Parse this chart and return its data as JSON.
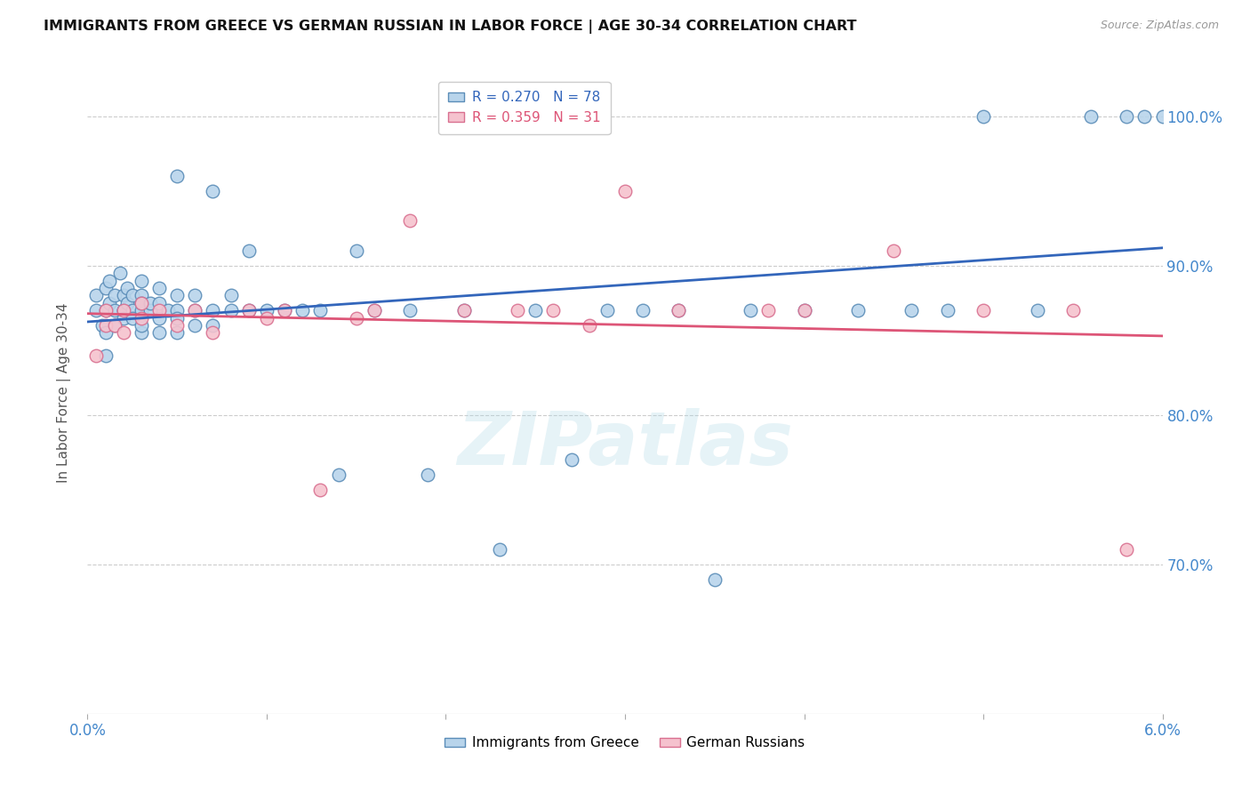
{
  "title": "IMMIGRANTS FROM GREECE VS GERMAN RUSSIAN IN LABOR FORCE | AGE 30-34 CORRELATION CHART",
  "source": "Source: ZipAtlas.com",
  "ylabel": "In Labor Force | Age 30-34",
  "xmin": 0.0,
  "xmax": 0.06,
  "ymin": 0.6,
  "ymax": 1.03,
  "yticks": [
    0.7,
    0.8,
    0.9,
    1.0
  ],
  "ytick_labels": [
    "70.0%",
    "80.0%",
    "90.0%",
    "100.0%"
  ],
  "greece_color": "#b8d4eb",
  "greece_edge": "#5b8db8",
  "german_color": "#f5c2ce",
  "german_edge": "#d97090",
  "trend_greece_color": "#3366bb",
  "trend_german_color": "#dd5577",
  "legend_R_greece": "R = 0.270",
  "legend_N_greece": "N = 78",
  "legend_R_german": "R = 0.359",
  "legend_N_german": "N = 31",
  "greece_x": [
    0.0005,
    0.0005,
    0.0008,
    0.001,
    0.001,
    0.001,
    0.001,
    0.0012,
    0.0012,
    0.0015,
    0.0015,
    0.0015,
    0.0018,
    0.002,
    0.002,
    0.002,
    0.002,
    0.0022,
    0.0022,
    0.0025,
    0.0025,
    0.0025,
    0.003,
    0.003,
    0.003,
    0.003,
    0.003,
    0.003,
    0.0035,
    0.0035,
    0.004,
    0.004,
    0.004,
    0.004,
    0.0045,
    0.005,
    0.005,
    0.005,
    0.005,
    0.005,
    0.006,
    0.006,
    0.006,
    0.007,
    0.007,
    0.007,
    0.008,
    0.008,
    0.009,
    0.009,
    0.01,
    0.011,
    0.012,
    0.013,
    0.014,
    0.015,
    0.016,
    0.018,
    0.019,
    0.021,
    0.023,
    0.025,
    0.027,
    0.029,
    0.031,
    0.033,
    0.035,
    0.037,
    0.04,
    0.043,
    0.046,
    0.048,
    0.05,
    0.053,
    0.056,
    0.058,
    0.059,
    0.06
  ],
  "greece_y": [
    0.87,
    0.88,
    0.86,
    0.84,
    0.855,
    0.87,
    0.885,
    0.875,
    0.89,
    0.88,
    0.87,
    0.86,
    0.895,
    0.87,
    0.88,
    0.87,
    0.865,
    0.885,
    0.875,
    0.87,
    0.865,
    0.88,
    0.855,
    0.87,
    0.88,
    0.875,
    0.86,
    0.89,
    0.87,
    0.875,
    0.855,
    0.865,
    0.875,
    0.885,
    0.87,
    0.96,
    0.87,
    0.88,
    0.855,
    0.865,
    0.87,
    0.86,
    0.88,
    0.87,
    0.86,
    0.95,
    0.87,
    0.88,
    0.87,
    0.91,
    0.87,
    0.87,
    0.87,
    0.87,
    0.76,
    0.91,
    0.87,
    0.87,
    0.76,
    0.87,
    0.71,
    0.87,
    0.77,
    0.87,
    0.87,
    0.87,
    0.69,
    0.87,
    0.87,
    0.87,
    0.87,
    0.87,
    1.0,
    0.87,
    1.0,
    1.0,
    1.0,
    1.0
  ],
  "german_x": [
    0.0005,
    0.001,
    0.001,
    0.0015,
    0.002,
    0.002,
    0.003,
    0.003,
    0.004,
    0.005,
    0.006,
    0.007,
    0.009,
    0.01,
    0.011,
    0.013,
    0.015,
    0.016,
    0.018,
    0.021,
    0.024,
    0.026,
    0.028,
    0.03,
    0.033,
    0.038,
    0.04,
    0.045,
    0.05,
    0.055,
    0.058
  ],
  "german_y": [
    0.84,
    0.86,
    0.87,
    0.86,
    0.855,
    0.87,
    0.865,
    0.875,
    0.87,
    0.86,
    0.87,
    0.855,
    0.87,
    0.865,
    0.87,
    0.75,
    0.865,
    0.87,
    0.93,
    0.87,
    0.87,
    0.87,
    0.86,
    0.95,
    0.87,
    0.87,
    0.87,
    0.91,
    0.87,
    0.87,
    0.71
  ],
  "watermark_text": "ZIPatlas",
  "background_color": "#ffffff",
  "text_color_blue": "#4488cc",
  "grid_color": "#cccccc"
}
